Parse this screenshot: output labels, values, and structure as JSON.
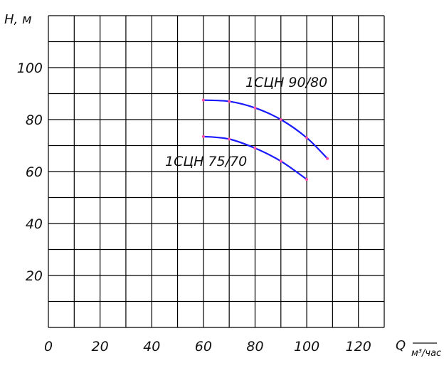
{
  "chart_data": {
    "type": "line",
    "ylabel": "Н, м",
    "xlabel": "Q",
    "xunit": "м³/час",
    "xlim": [
      0,
      130
    ],
    "ylim": [
      0,
      120
    ],
    "xgrid_step": 10,
    "ygrid_step": 10,
    "grid": true,
    "xticks": [
      0,
      20,
      40,
      60,
      80,
      100,
      120
    ],
    "yticks": [
      20,
      40,
      60,
      80,
      100
    ],
    "line_color": "#1a1aff",
    "point_color": "#ff4da6",
    "series": [
      {
        "name": "1СЦН 90/80",
        "x": [
          60,
          70,
          80,
          90,
          100,
          108
        ],
        "y": [
          87.5,
          87,
          84.5,
          80,
          73,
          65
        ]
      },
      {
        "name": "1СЦН 75/70",
        "x": [
          60,
          70,
          80,
          90,
          100
        ],
        "y": [
          73.5,
          72.5,
          69,
          64,
          57
        ]
      }
    ]
  }
}
